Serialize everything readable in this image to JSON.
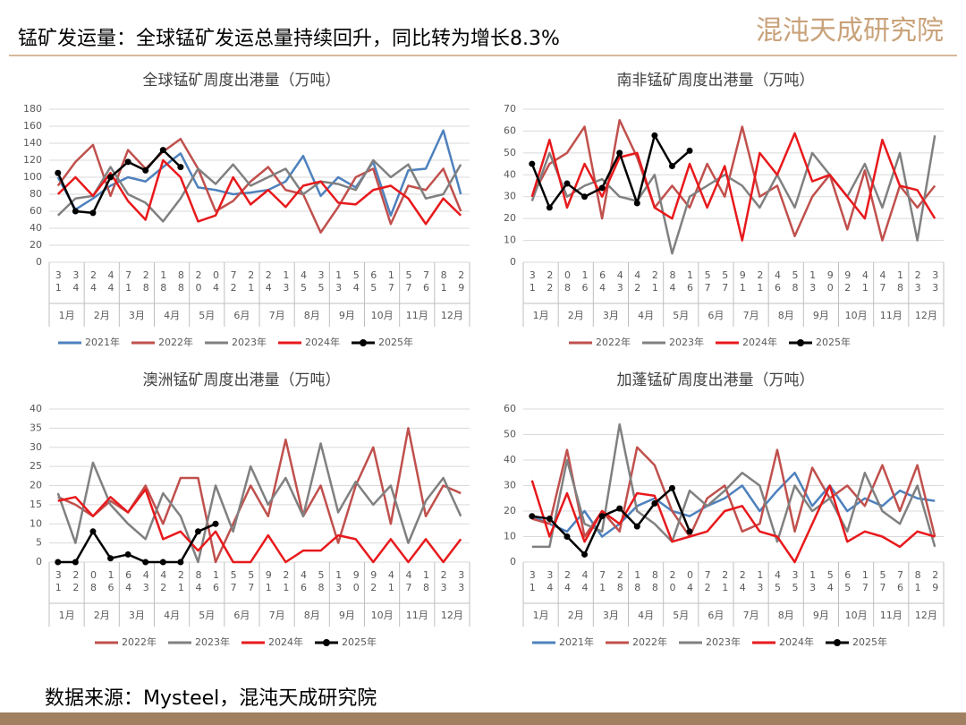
{
  "header": {
    "title": "锰矿发运量：全球锰矿发运总量持续回升，同比转为增长8.3%",
    "logo": "混沌天成研究院"
  },
  "footer": "数据来源：Mysteel，混沌天成研究院",
  "chart_data": [
    {
      "type": "line",
      "title": "全球锰矿周度出港量（万吨）",
      "categories": [
        "31",
        "34",
        "24",
        "44",
        "71",
        "28",
        "18",
        "88",
        "20",
        "04",
        "72",
        "21",
        "24",
        "13",
        "45",
        "35",
        "13",
        "54",
        "65",
        "17",
        "57",
        "76",
        "81",
        "29"
      ],
      "months": [
        "1月",
        "2月",
        "3月",
        "4月",
        "5月",
        "6月",
        "7月",
        "8月",
        "9月",
        "10月",
        "11月",
        "12月"
      ],
      "ylim": [
        0,
        180
      ],
      "yticks": [
        0,
        20,
        40,
        60,
        80,
        100,
        120,
        140,
        160,
        180
      ],
      "grid": true,
      "series": [
        {
          "name": "2021年",
          "color": "#4e81bd",
          "values": [
            100,
            62,
            75,
            90,
            100,
            95,
            112,
            128,
            88,
            85,
            80,
            82,
            85,
            95,
            125,
            78,
            100,
            88,
            118,
            55,
            108,
            110,
            155,
            80
          ]
        },
        {
          "name": "2022年",
          "color": "#c0504d",
          "values": [
            90,
            118,
            138,
            78,
            132,
            110,
            130,
            145,
            110,
            60,
            72,
            95,
            112,
            85,
            80,
            35,
            65,
            100,
            110,
            45,
            90,
            85,
            110,
            60
          ]
        },
        {
          "name": "2023年",
          "color": "#808080",
          "values": [
            55,
            75,
            78,
            112,
            80,
            70,
            48,
            75,
            110,
            92,
            115,
            90,
            100,
            110,
            80,
            95,
            92,
            85,
            120,
            100,
            115,
            75,
            80,
            115
          ]
        },
        {
          "name": "2024年",
          "color": "#e8191c",
          "values": [
            80,
            100,
            78,
            105,
            72,
            50,
            120,
            100,
            48,
            55,
            100,
            68,
            85,
            65,
            90,
            95,
            70,
            68,
            85,
            90,
            75,
            45,
            75,
            55
          ]
        },
        {
          "name": "2025年",
          "color": "#000000",
          "values": [
            105,
            60,
            58,
            100,
            118,
            108,
            132,
            112,
            null,
            null,
            null,
            null,
            null,
            null,
            null,
            null,
            null,
            null,
            null,
            null,
            null,
            null,
            null,
            null
          ]
        }
      ]
    },
    {
      "type": "line",
      "title": "南非锰矿周度出港量（万吨）",
      "categories": [
        "31",
        "22",
        "08",
        "16",
        "64",
        "43",
        "42",
        "21",
        "84",
        "16",
        "57",
        "57",
        "91",
        "21",
        "46",
        "58",
        "13",
        "90",
        "92",
        "41",
        "47",
        "18",
        "23",
        "33"
      ],
      "months": [
        "1月",
        "2月",
        "3月",
        "4月",
        "5月",
        "6月",
        "7月",
        "8月",
        "9月",
        "10月",
        "11月",
        "12月"
      ],
      "ylim": [
        0,
        70
      ],
      "yticks": [
        0,
        10,
        20,
        30,
        40,
        50,
        60,
        70
      ],
      "grid": true,
      "series": [
        {
          "name": "2022年",
          "color": "#c0504d",
          "values": [
            30,
            45,
            50,
            62,
            20,
            65,
            48,
            25,
            35,
            25,
            45,
            30,
            62,
            30,
            35,
            12,
            30,
            40,
            15,
            42,
            10,
            35,
            25,
            35
          ]
        },
        {
          "name": "2023年",
          "color": "#808080",
          "values": [
            28,
            50,
            30,
            35,
            38,
            30,
            28,
            40,
            4,
            30,
            35,
            40,
            35,
            25,
            40,
            25,
            50,
            40,
            30,
            45,
            25,
            50,
            10,
            58
          ]
        },
        {
          "name": "2024年",
          "color": "#e8191c",
          "values": [
            30,
            56,
            25,
            45,
            30,
            48,
            50,
            25,
            20,
            45,
            25,
            44,
            10,
            50,
            40,
            59,
            37,
            40,
            30,
            20,
            56,
            35,
            33,
            20
          ]
        },
        {
          "name": "2025年",
          "color": "#000000",
          "values": [
            45,
            25,
            36,
            30,
            34,
            50,
            27,
            58,
            44,
            51,
            null,
            null,
            null,
            null,
            null,
            null,
            null,
            null,
            null,
            null,
            null,
            null,
            null,
            null
          ]
        }
      ]
    },
    {
      "type": "line",
      "title": "澳洲锰矿周度出港量（万吨）",
      "categories": [
        "31",
        "22",
        "08",
        "16",
        "64",
        "43",
        "42",
        "21",
        "84",
        "16",
        "57",
        "57",
        "91",
        "21",
        "46",
        "58",
        "13",
        "90",
        "92",
        "41",
        "47",
        "18",
        "23",
        "33"
      ],
      "months": [
        "1月",
        "2月",
        "3月",
        "4月",
        "5月",
        "6月",
        "7月",
        "8月",
        "9月",
        "10月",
        "11月",
        "12月"
      ],
      "ylim": [
        0,
        40
      ],
      "yticks": [
        0,
        5,
        10,
        15,
        20,
        25,
        30,
        35,
        40
      ],
      "grid": true,
      "series": [
        {
          "name": "2022年",
          "color": "#c0504d",
          "values": [
            17,
            15,
            12,
            16,
            13,
            20,
            10,
            22,
            22,
            0,
            10,
            20,
            12,
            32,
            12,
            20,
            5,
            20,
            30,
            10,
            35,
            12,
            20,
            18
          ]
        },
        {
          "name": "2023年",
          "color": "#808080",
          "values": [
            18,
            5,
            26,
            15,
            10,
            6,
            18,
            12,
            0,
            20,
            8,
            25,
            15,
            22,
            12,
            31,
            13,
            21,
            15,
            20,
            5,
            16,
            22,
            12
          ]
        },
        {
          "name": "2024年",
          "color": "#e8191c",
          "values": [
            16,
            17,
            12,
            17,
            13,
            19,
            6,
            8,
            3,
            8,
            0,
            0,
            7,
            0,
            3,
            3,
            7,
            6,
            0,
            6,
            0,
            6,
            0,
            6
          ]
        },
        {
          "name": "2025年",
          "color": "#000000",
          "values": [
            0,
            0,
            8,
            1,
            2,
            0,
            0,
            0,
            8,
            10,
            null,
            null,
            null,
            null,
            null,
            null,
            null,
            null,
            null,
            null,
            null,
            null,
            null,
            null
          ]
        }
      ]
    },
    {
      "type": "line",
      "title": "加蓬锰矿周度出港量（万吨）",
      "categories": [
        "31",
        "34",
        "24",
        "44",
        "71",
        "28",
        "18",
        "88",
        "20",
        "04",
        "72",
        "21",
        "24",
        "13",
        "45",
        "35",
        "13",
        "54",
        "65",
        "17",
        "57",
        "76",
        "81",
        "29"
      ],
      "months": [
        "1月",
        "2月",
        "3月",
        "4月",
        "5月",
        "6月",
        "7月",
        "8月",
        "9月",
        "10月",
        "11月",
        "12月"
      ],
      "ylim": [
        0,
        60
      ],
      "yticks": [
        0,
        10,
        20,
        30,
        40,
        50,
        60
      ],
      "grid": true,
      "series": [
        {
          "name": "2021年",
          "color": "#4e81bd",
          "values": [
            18,
            15,
            12,
            20,
            10,
            15,
            22,
            25,
            20,
            18,
            22,
            25,
            30,
            20,
            28,
            35,
            22,
            30,
            20,
            25,
            22,
            28,
            25,
            24
          ]
        },
        {
          "name": "2022年",
          "color": "#c0504d",
          "values": [
            17,
            15,
            44,
            10,
            20,
            12,
            45,
            38,
            20,
            10,
            25,
            30,
            12,
            15,
            44,
            12,
            37,
            25,
            30,
            22,
            38,
            20,
            38,
            10
          ]
        },
        {
          "name": "2023年",
          "color": "#808080",
          "values": [
            6,
            6,
            40,
            15,
            12,
            54,
            20,
            15,
            8,
            28,
            22,
            28,
            35,
            30,
            8,
            30,
            20,
            25,
            12,
            35,
            20,
            15,
            30,
            6
          ]
        },
        {
          "name": "2024年",
          "color": "#e8191c",
          "values": [
            32,
            10,
            27,
            8,
            20,
            15,
            27,
            26,
            8,
            10,
            12,
            20,
            22,
            12,
            10,
            0,
            15,
            30,
            8,
            12,
            10,
            6,
            12,
            10
          ]
        },
        {
          "name": "2025年",
          "color": "#000000",
          "values": [
            18,
            17,
            10,
            3,
            18,
            21,
            14,
            23,
            29,
            12,
            null,
            null,
            null,
            null,
            null,
            null,
            null,
            null,
            null,
            null,
            null,
            null,
            null,
            null
          ]
        }
      ]
    }
  ]
}
